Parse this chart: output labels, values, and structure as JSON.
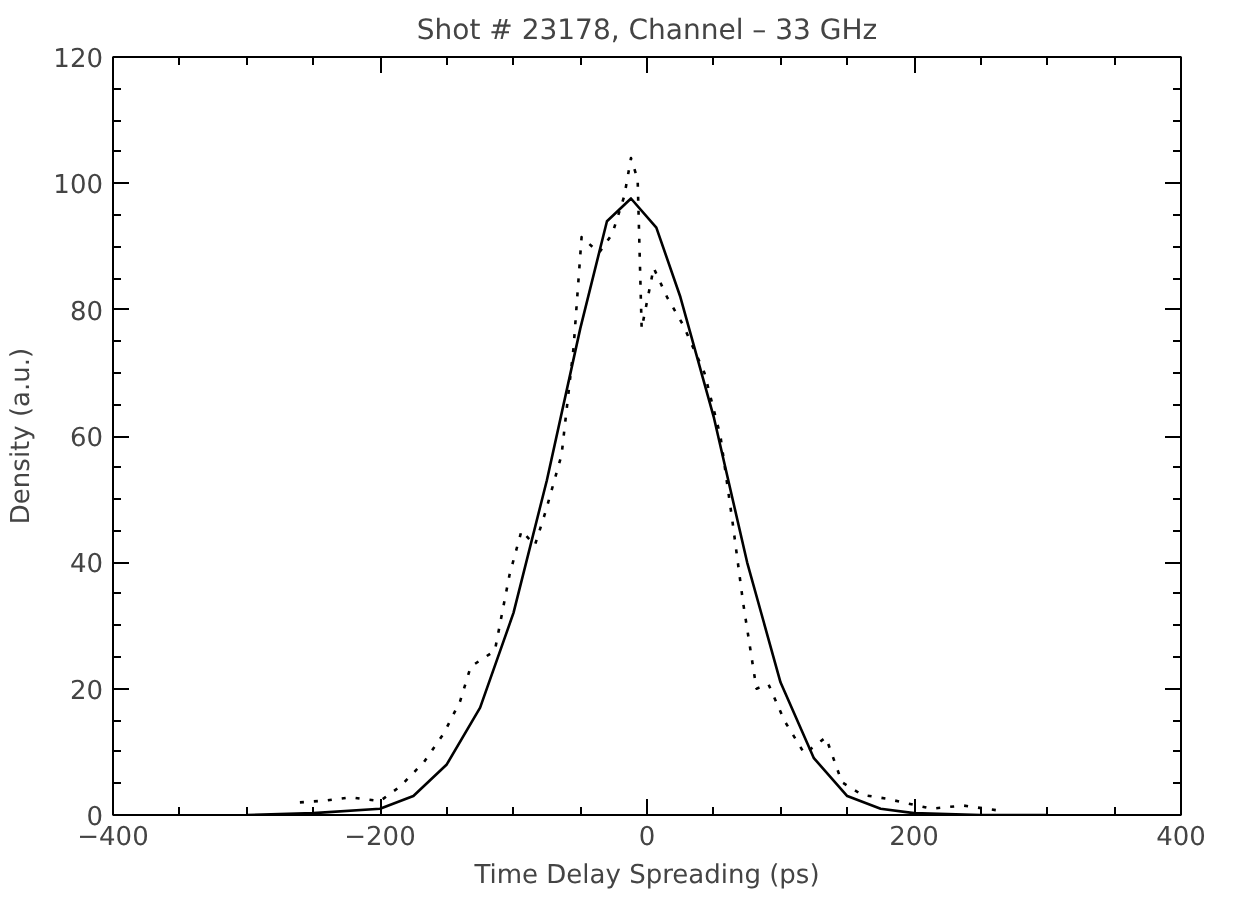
{
  "chart_data": {
    "type": "line",
    "title": "Shot # 23178, Channel – 33 GHz",
    "xlabel": "Time Delay Spreading (ps)",
    "ylabel": "Density (a.u.)",
    "xlim": [
      -400,
      400
    ],
    "ylim": [
      0,
      120
    ],
    "xticks": [
      -400,
      -200,
      0,
      200,
      400
    ],
    "yticks": [
      0,
      20,
      40,
      60,
      80,
      100,
      120
    ],
    "grid": false,
    "series": [
      {
        "color": "#000000",
        "line_style": "solid",
        "x": [
          -300,
          -250,
          -200,
          -175,
          -150,
          -125,
          -100,
          -75,
          -50,
          -30,
          -12,
          7,
          25,
          50,
          75,
          100,
          125,
          150,
          175,
          200,
          250,
          300
        ],
        "values": [
          0,
          0.3,
          1,
          3,
          8,
          17,
          32,
          53,
          77,
          94,
          97.6,
          93,
          82,
          63,
          40,
          21,
          9,
          3,
          1,
          0.3,
          0,
          0
        ]
      },
      {
        "color": "#000000",
        "line_style": "dotted",
        "x": [
          -260,
          -240,
          -222,
          -200,
          -185,
          -167,
          -152,
          -140,
          -132,
          -114,
          -103,
          -94,
          -84,
          -76,
          -64,
          -55,
          -49,
          -36,
          -26,
          -17,
          -12,
          -7,
          -4,
          5,
          15,
          27,
          43,
          55,
          64,
          72,
          82,
          91,
          103,
          118,
          134,
          146,
          161,
          179,
          213,
          237,
          267
        ],
        "values": [
          2,
          2.3,
          2.8,
          2.2,
          4.5,
          8.4,
          13,
          18,
          23.5,
          26,
          38,
          45,
          42.7,
          48,
          57,
          74,
          91.5,
          89,
          92,
          98,
          104,
          100.6,
          77,
          86.6,
          82,
          77.6,
          70,
          60,
          46.5,
          33.6,
          20,
          20.7,
          14.9,
          9.7,
          12.3,
          5.2,
          3.2,
          2.6,
          1,
          1.5,
          0.6
        ]
      }
    ]
  }
}
